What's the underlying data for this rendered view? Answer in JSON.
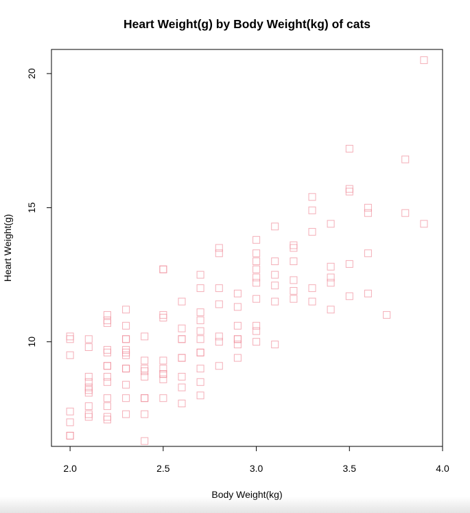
{
  "chart_data": {
    "type": "scatter",
    "title": "Heart Weight(g) by Body Weight(kg) of cats",
    "xlabel": "Body Weight(kg)",
    "ylabel": "Heart Weight(g)",
    "xlim": [
      1.9,
      4.0
    ],
    "ylim": [
      6.1,
      20.9
    ],
    "xticks": [
      "2.0",
      "2.5",
      "3.0",
      "3.5",
      "4.0"
    ],
    "yticks": [
      "10",
      "15",
      "20"
    ],
    "marker": "open-square",
    "marker_color": "#f08c98",
    "grid": false,
    "points": [
      [
        2.0,
        7.0
      ],
      [
        2.0,
        7.4
      ],
      [
        2.0,
        9.5
      ],
      [
        2.0,
        10.1
      ],
      [
        2.0,
        10.2
      ],
      [
        2.0,
        6.5
      ],
      [
        2.0,
        6.5
      ],
      [
        2.1,
        7.2
      ],
      [
        2.1,
        7.3
      ],
      [
        2.1,
        7.6
      ],
      [
        2.1,
        8.1
      ],
      [
        2.1,
        8.2
      ],
      [
        2.1,
        8.3
      ],
      [
        2.1,
        8.5
      ],
      [
        2.1,
        8.7
      ],
      [
        2.1,
        9.8
      ],
      [
        2.1,
        10.1
      ],
      [
        2.2,
        7.1
      ],
      [
        2.2,
        7.2
      ],
      [
        2.2,
        7.6
      ],
      [
        2.2,
        7.9
      ],
      [
        2.2,
        8.5
      ],
      [
        2.2,
        8.7
      ],
      [
        2.2,
        9.1
      ],
      [
        2.2,
        9.1
      ],
      [
        2.2,
        9.6
      ],
      [
        2.2,
        9.7
      ],
      [
        2.2,
        10.7
      ],
      [
        2.2,
        10.8
      ],
      [
        2.2,
        11.0
      ],
      [
        2.3,
        7.3
      ],
      [
        2.3,
        7.9
      ],
      [
        2.3,
        8.4
      ],
      [
        2.3,
        9.0
      ],
      [
        2.3,
        9.0
      ],
      [
        2.3,
        9.5
      ],
      [
        2.3,
        9.6
      ],
      [
        2.3,
        9.7
      ],
      [
        2.3,
        10.1
      ],
      [
        2.3,
        10.1
      ],
      [
        2.3,
        10.6
      ],
      [
        2.3,
        11.2
      ],
      [
        2.4,
        6.3
      ],
      [
        2.4,
        7.3
      ],
      [
        2.4,
        7.9
      ],
      [
        2.4,
        7.9
      ],
      [
        2.4,
        8.7
      ],
      [
        2.4,
        8.9
      ],
      [
        2.4,
        9.0
      ],
      [
        2.4,
        9.3
      ],
      [
        2.4,
        10.2
      ],
      [
        2.5,
        7.9
      ],
      [
        2.5,
        8.6
      ],
      [
        2.5,
        8.8
      ],
      [
        2.5,
        8.8
      ],
      [
        2.5,
        9.0
      ],
      [
        2.5,
        9.3
      ],
      [
        2.5,
        10.9
      ],
      [
        2.5,
        11.0
      ],
      [
        2.5,
        12.7
      ],
      [
        2.5,
        12.7
      ],
      [
        2.6,
        7.7
      ],
      [
        2.6,
        8.3
      ],
      [
        2.6,
        8.7
      ],
      [
        2.6,
        9.4
      ],
      [
        2.6,
        9.4
      ],
      [
        2.6,
        10.1
      ],
      [
        2.6,
        10.1
      ],
      [
        2.6,
        10.5
      ],
      [
        2.6,
        11.5
      ],
      [
        2.7,
        8.0
      ],
      [
        2.7,
        8.5
      ],
      [
        2.7,
        9.0
      ],
      [
        2.7,
        9.6
      ],
      [
        2.7,
        9.6
      ],
      [
        2.7,
        10.1
      ],
      [
        2.7,
        10.4
      ],
      [
        2.7,
        10.8
      ],
      [
        2.7,
        11.1
      ],
      [
        2.7,
        12.0
      ],
      [
        2.7,
        12.5
      ],
      [
        2.8,
        9.1
      ],
      [
        2.8,
        10.0
      ],
      [
        2.8,
        10.2
      ],
      [
        2.8,
        11.4
      ],
      [
        2.8,
        12.0
      ],
      [
        2.8,
        13.3
      ],
      [
        2.8,
        13.5
      ],
      [
        2.9,
        9.4
      ],
      [
        2.9,
        10.1
      ],
      [
        2.9,
        10.1
      ],
      [
        2.9,
        10.6
      ],
      [
        2.9,
        11.3
      ],
      [
        2.9,
        11.8
      ],
      [
        2.9,
        9.9
      ],
      [
        3.0,
        10.0
      ],
      [
        3.0,
        10.4
      ],
      [
        3.0,
        10.6
      ],
      [
        3.0,
        11.6
      ],
      [
        3.0,
        12.2
      ],
      [
        3.0,
        12.4
      ],
      [
        3.0,
        12.7
      ],
      [
        3.0,
        13.0
      ],
      [
        3.0,
        13.3
      ],
      [
        3.0,
        13.8
      ],
      [
        3.1,
        9.9
      ],
      [
        3.1,
        11.5
      ],
      [
        3.1,
        12.1
      ],
      [
        3.1,
        12.5
      ],
      [
        3.1,
        13.0
      ],
      [
        3.1,
        14.3
      ],
      [
        3.2,
        11.6
      ],
      [
        3.2,
        11.9
      ],
      [
        3.2,
        12.3
      ],
      [
        3.2,
        13.0
      ],
      [
        3.2,
        13.5
      ],
      [
        3.2,
        13.6
      ],
      [
        3.3,
        11.5
      ],
      [
        3.3,
        12.0
      ],
      [
        3.3,
        14.1
      ],
      [
        3.3,
        14.9
      ],
      [
        3.3,
        15.4
      ],
      [
        3.4,
        11.2
      ],
      [
        3.4,
        12.2
      ],
      [
        3.4,
        12.4
      ],
      [
        3.4,
        12.8
      ],
      [
        3.4,
        14.4
      ],
      [
        3.5,
        11.7
      ],
      [
        3.5,
        12.9
      ],
      [
        3.5,
        15.6
      ],
      [
        3.5,
        15.7
      ],
      [
        3.5,
        17.2
      ],
      [
        3.6,
        11.8
      ],
      [
        3.6,
        13.3
      ],
      [
        3.6,
        14.8
      ],
      [
        3.6,
        15.0
      ],
      [
        3.7,
        11.0
      ],
      [
        3.8,
        14.8
      ],
      [
        3.8,
        16.8
      ],
      [
        3.9,
        14.4
      ],
      [
        3.9,
        20.5
      ]
    ]
  }
}
